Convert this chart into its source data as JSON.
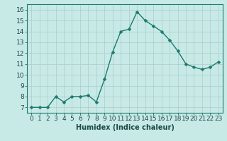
{
  "x": [
    0,
    1,
    2,
    3,
    4,
    5,
    6,
    7,
    8,
    9,
    10,
    11,
    12,
    13,
    14,
    15,
    16,
    17,
    18,
    19,
    20,
    21,
    22,
    23
  ],
  "y": [
    7.0,
    7.0,
    7.0,
    8.0,
    7.5,
    8.0,
    8.0,
    8.1,
    7.5,
    9.6,
    12.1,
    14.0,
    14.2,
    15.8,
    15.0,
    14.5,
    14.0,
    13.2,
    12.2,
    11.0,
    10.7,
    10.5,
    10.7,
    11.2
  ],
  "line_color": "#1a7a6e",
  "marker_color": "#1a7a6e",
  "background_color": "#c8eae6",
  "grid_color": "#b0d0cc",
  "xlabel": "Humidex (Indice chaleur)",
  "xlim": [
    -0.5,
    23.5
  ],
  "ylim": [
    6.5,
    16.5
  ],
  "yticks": [
    7,
    8,
    9,
    10,
    11,
    12,
    13,
    14,
    15,
    16
  ],
  "xticks": [
    0,
    1,
    2,
    3,
    4,
    5,
    6,
    7,
    8,
    9,
    10,
    11,
    12,
    13,
    14,
    15,
    16,
    17,
    18,
    19,
    20,
    21,
    22,
    23
  ],
  "xlabel_fontsize": 7,
  "tick_fontsize": 6.5,
  "line_width": 1.0,
  "marker_size": 2.5,
  "spine_color": "#1a7a6e",
  "text_color": "#1a4a46"
}
